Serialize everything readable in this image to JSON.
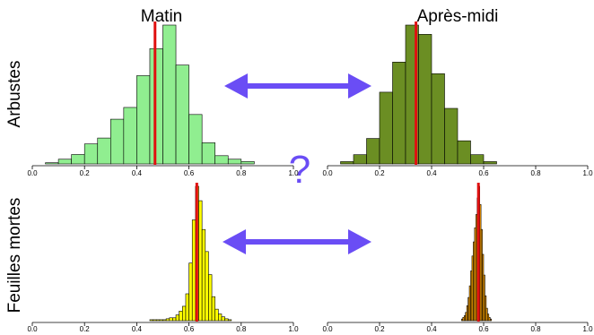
{
  "headers": {
    "left": "Matin",
    "right": "Après-midi"
  },
  "row_labels": {
    "top": "Arbustes",
    "bottom": "Feuilles mortes"
  },
  "center_symbol": "?",
  "colors": {
    "outline": "#000000",
    "mean_line": "#e01010",
    "arrow": "#6a4df5",
    "question_mark": "#6a4df5"
  },
  "chart_data": [
    {
      "type": "bar",
      "panel": "top-left",
      "fill": "#90ee90",
      "xlim": [
        0,
        1
      ],
      "xticks": [
        "0.0",
        "0.2",
        "0.4",
        "0.6",
        "0.8",
        "1.0"
      ],
      "bin_width": 0.05,
      "bins_start": [
        0.05,
        0.1,
        0.15,
        0.2,
        0.25,
        0.3,
        0.35,
        0.4,
        0.45,
        0.5,
        0.55,
        0.6,
        0.65,
        0.7,
        0.75,
        0.8
      ],
      "values": [
        1,
        4,
        8,
        17,
        22,
        38,
        48,
        75,
        98,
        118,
        84,
        42,
        18,
        7,
        4,
        2
      ],
      "mean": 0.47
    },
    {
      "type": "bar",
      "panel": "top-right",
      "fill": "#6b8e23",
      "xlim": [
        0,
        1
      ],
      "xticks": [
        "0.0",
        "0.2",
        "0.4",
        "0.6",
        "0.8",
        "1.0"
      ],
      "bin_width": 0.05,
      "bins_start": [
        0.05,
        0.1,
        0.15,
        0.2,
        0.25,
        0.3,
        0.35,
        0.4,
        0.45,
        0.5,
        0.55,
        0.6
      ],
      "values": [
        2,
        8,
        22,
        62,
        88,
        120,
        112,
        78,
        48,
        20,
        8,
        2
      ],
      "mean": 0.34
    },
    {
      "type": "bar",
      "panel": "bottom-left",
      "fill": "#ffff00",
      "xlim": [
        0,
        1
      ],
      "xticks": [
        "0.0",
        "0.2",
        "0.4",
        "0.6",
        "0.8",
        "1.0"
      ],
      "bin_width": 0.0125,
      "bins_start": [
        0.4375,
        0.45,
        0.4625,
        0.475,
        0.4875,
        0.5,
        0.5125,
        0.525,
        0.5375,
        0.55,
        0.5625,
        0.575,
        0.5875,
        0.6,
        0.6125,
        0.625,
        0.6375,
        0.65,
        0.6625,
        0.675,
        0.6875,
        0.7,
        0.7125,
        0.725,
        0.7375,
        0.75
      ],
      "values": [
        0,
        1,
        1,
        1,
        1,
        1,
        2,
        3,
        3,
        6,
        10,
        15,
        28,
        60,
        105,
        140,
        125,
        95,
        72,
        48,
        25,
        12,
        7,
        4,
        2,
        1
      ],
      "mean": 0.63
    },
    {
      "type": "bar",
      "panel": "bottom-right",
      "fill": "#ffa500",
      "xlim": [
        0,
        1
      ],
      "xticks": [
        "0.0",
        "0.2",
        "0.4",
        "0.6",
        "0.8",
        "1.0"
      ],
      "bin_width": 0.005,
      "bins_start": [
        0.515,
        0.52,
        0.525,
        0.53,
        0.535,
        0.54,
        0.545,
        0.55,
        0.555,
        0.56,
        0.565,
        0.57,
        0.575,
        0.58,
        0.585,
        0.59,
        0.595,
        0.6,
        0.605,
        0.61,
        0.615,
        0.62,
        0.625
      ],
      "values": [
        2,
        4,
        6,
        10,
        18,
        28,
        42,
        60,
        78,
        95,
        112,
        128,
        148,
        162,
        140,
        110,
        80,
        55,
        30,
        15,
        8,
        4,
        2
      ],
      "mean": 0.58
    }
  ]
}
